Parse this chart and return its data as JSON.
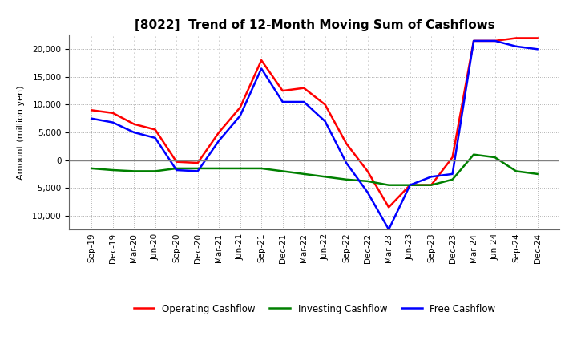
{
  "title": "[8022]  Trend of 12-Month Moving Sum of Cashflows",
  "ylabel": "Amount (million yen)",
  "labels": [
    "Sep-19",
    "Dec-19",
    "Mar-20",
    "Jun-20",
    "Sep-20",
    "Dec-20",
    "Mar-21",
    "Jun-21",
    "Sep-21",
    "Dec-21",
    "Mar-22",
    "Jun-22",
    "Sep-22",
    "Dec-22",
    "Mar-23",
    "Jun-23",
    "Sep-23",
    "Dec-23",
    "Mar-24",
    "Jun-24",
    "Sep-24",
    "Dec-24"
  ],
  "operating": [
    9000,
    8500,
    6500,
    5500,
    -300,
    -500,
    5000,
    9500,
    18000,
    12500,
    13000,
    10000,
    3000,
    -2000,
    -8500,
    -4500,
    -4500,
    500,
    21500,
    21500,
    22000,
    22000
  ],
  "investing": [
    -1500,
    -1800,
    -2000,
    -2000,
    -1500,
    -1500,
    -1500,
    -1500,
    -1500,
    -2000,
    -2500,
    -3000,
    -3500,
    -3800,
    -4500,
    -4500,
    -4500,
    -3500,
    1000,
    500,
    -2000,
    -2500
  ],
  "free": [
    7500,
    6800,
    5000,
    4000,
    -1800,
    -2000,
    3500,
    8000,
    16500,
    10500,
    10500,
    7000,
    -500,
    -5800,
    -12500,
    -4500,
    -3000,
    -2500,
    21500,
    21500,
    20500,
    20000
  ],
  "operating_color": "#FF0000",
  "investing_color": "#008000",
  "free_color": "#0000FF",
  "ylim": [
    -12500,
    22500
  ],
  "yticks": [
    -10000,
    -5000,
    0,
    5000,
    10000,
    15000,
    20000
  ],
  "background_color": "#FFFFFF",
  "grid_color": "#999999",
  "title_fontsize": 11,
  "axis_fontsize": 8,
  "tick_fontsize": 7.5,
  "legend_fontsize": 8.5,
  "linewidth": 1.8
}
